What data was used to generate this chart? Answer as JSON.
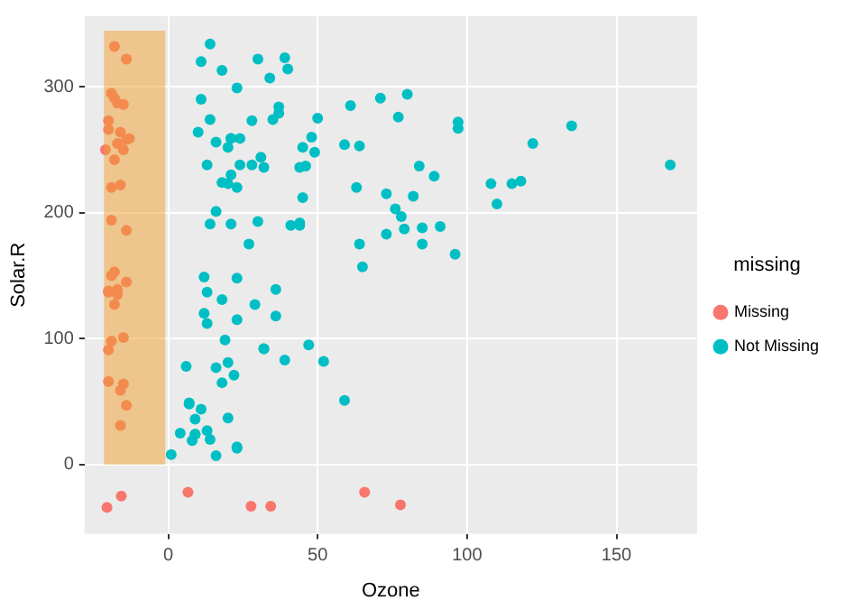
{
  "chart_data": {
    "type": "scatter",
    "xlabel": "Ozone",
    "ylabel": "Solar.R",
    "legend_title": "missing",
    "legend": "right",
    "grid": true,
    "marker": "circle",
    "xlim": [
      -28,
      177
    ],
    "ylim": [
      -55,
      356
    ],
    "xticks": [
      0,
      50,
      100,
      150
    ],
    "yticks": [
      0,
      100,
      200,
      300
    ],
    "bands": [
      {
        "axis": "x",
        "from": -21.5,
        "to": -1,
        "color": "#f0a030"
      }
    ],
    "series": [
      {
        "name": "Missing",
        "color": "#f8766d",
        "x": [
          -19,
          -20,
          -20,
          -15,
          -17,
          -18,
          -14,
          -19,
          -16,
          -20,
          -13,
          -21,
          -18,
          -14,
          -19,
          -16,
          -20,
          -15,
          -17,
          -18,
          -14,
          -19,
          -16,
          -20,
          -15,
          -17,
          -18,
          -14,
          -19,
          -16,
          -20,
          -15,
          -17,
          -18,
          -14,
          -20.5,
          -15.7,
          6.6,
          27.7,
          34.3,
          65.7,
          77.7
        ],
        "values": [
          194,
          66,
          266,
          286,
          287,
          242,
          186,
          220,
          264,
          273,
          259,
          250,
          332,
          322,
          150,
          59,
          91,
          250,
          135,
          127,
          47,
          98,
          31,
          138,
          101,
          139,
          291,
          258,
          295,
          222,
          137,
          64,
          255,
          153,
          145,
          -34,
          -25,
          -22,
          -33,
          -33,
          -22,
          -32
        ]
      },
      {
        "name": "Not Missing",
        "color": "#00bfc4",
        "x": [
          41,
          36,
          12,
          18,
          23,
          19,
          8,
          16,
          11,
          14,
          18,
          14,
          34,
          6,
          30,
          11,
          1,
          11,
          4,
          32,
          23,
          45,
          115,
          37,
          29,
          71,
          39,
          23,
          21,
          37,
          20,
          12,
          13,
          135,
          49,
          32,
          64,
          40,
          77,
          97,
          97,
          85,
          10,
          27,
          7,
          48,
          35,
          61,
          79,
          63,
          16,
          80,
          108,
          20,
          52,
          82,
          50,
          64,
          59,
          39,
          9,
          16,
          122,
          89,
          110,
          44,
          28,
          65,
          22,
          59,
          23,
          31,
          44,
          21,
          9,
          45,
          168,
          73,
          76,
          118,
          84,
          85,
          96,
          78,
          73,
          91,
          47,
          32,
          20,
          23,
          21,
          24,
          44,
          21,
          28,
          9,
          13,
          46,
          18,
          13,
          24,
          16,
          13,
          23,
          36,
          7,
          14,
          30,
          14,
          18,
          20
        ],
        "values": [
          190,
          118,
          149,
          313,
          299,
          99,
          19,
          256,
          290,
          274,
          65,
          334,
          307,
          78,
          322,
          44,
          8,
          320,
          25,
          92,
          13,
          252,
          223,
          279,
          127,
          291,
          323,
          148,
          191,
          284,
          37,
          120,
          137,
          269,
          248,
          236,
          175,
          314,
          276,
          267,
          272,
          175,
          264,
          175,
          48,
          260,
          274,
          285,
          187,
          220,
          7,
          294,
          223,
          81,
          82,
          213,
          275,
          253,
          254,
          83,
          24,
          77,
          255,
          229,
          207,
          192,
          273,
          157,
          71,
          51,
          115,
          244,
          190,
          259,
          36,
          212,
          238,
          215,
          203,
          225,
          237,
          188,
          167,
          197,
          183,
          189,
          95,
          92,
          252,
          220,
          230,
          259,
          236,
          259,
          238,
          24,
          112,
          237,
          224,
          27,
          238,
          201,
          238,
          14,
          139,
          49,
          20,
          193,
          191,
          131,
          223
        ]
      }
    ]
  }
}
